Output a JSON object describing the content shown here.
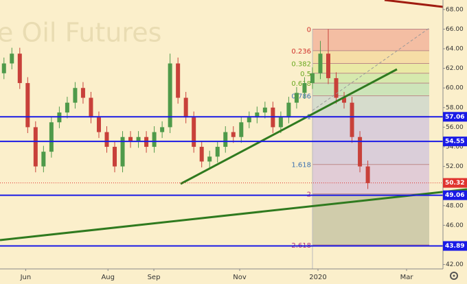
{
  "chart_data": {
    "type": "candlestick",
    "title": "e Oil Futures",
    "x": [
      -5,
      -3,
      -1,
      1,
      3,
      5,
      7,
      9,
      11,
      13,
      15,
      17,
      19,
      21,
      23,
      25,
      27,
      29,
      31,
      33,
      35,
      37,
      39,
      41,
      43,
      45,
      47,
      49,
      51,
      53,
      55,
      57,
      59,
      61,
      63,
      65,
      67,
      69,
      71,
      73,
      75,
      77,
      79,
      81,
      83,
      85,
      87
    ],
    "open": [
      61.5,
      62.5,
      63.5,
      60.5,
      56,
      52,
      53.5,
      56.5,
      57.5,
      58.5,
      60,
      59,
      57,
      55.5,
      54,
      52,
      55,
      54.5,
      55,
      54,
      55.5,
      56,
      62.5,
      59,
      57,
      54,
      52.5,
      53,
      54,
      55.5,
      55,
      56.5,
      57,
      57.5,
      58,
      56,
      57,
      58.5,
      59.5,
      60.5,
      61.5,
      63.5,
      61,
      59,
      58.5,
      55,
      52
    ],
    "high": [
      63.1,
      64.1,
      64.1,
      61.1,
      56.6,
      54.1,
      57.1,
      58.1,
      59.1,
      60.6,
      60.6,
      59.6,
      57.6,
      56.1,
      54.6,
      55.6,
      55.6,
      55.6,
      55.6,
      56.1,
      56.6,
      63.5,
      63.1,
      59.6,
      57.6,
      54.6,
      53.6,
      54.6,
      56.1,
      56.1,
      57.1,
      57.6,
      58.1,
      58.6,
      58.6,
      57.6,
      59.1,
      60.1,
      61.1,
      62.1,
      64.8,
      66.0,
      61.6,
      59.6,
      59.1,
      55.6,
      52.6
    ],
    "low": [
      60.9,
      61.9,
      59.9,
      55.4,
      51.4,
      51.4,
      52.9,
      55.9,
      56.9,
      57.9,
      58.4,
      56.4,
      54.9,
      53.4,
      51.4,
      51.4,
      53.9,
      53.9,
      53.4,
      53.4,
      54.9,
      55.4,
      58.4,
      56.4,
      53.4,
      51.9,
      51.9,
      52.4,
      53.4,
      54.4,
      54.4,
      55.9,
      56.4,
      56.9,
      55.4,
      55.4,
      56.4,
      57.9,
      58.9,
      59.9,
      60.9,
      60.4,
      58.4,
      57.9,
      54.4,
      51.4,
      49.7
    ],
    "close": [
      62.5,
      63.5,
      60.5,
      56,
      52,
      53.5,
      56.5,
      57.5,
      58.5,
      60,
      59,
      57,
      55.5,
      54,
      52,
      55,
      54.5,
      55,
      54,
      55.5,
      56,
      62.5,
      59,
      57,
      54,
      52.5,
      53,
      54,
      55.5,
      55,
      56.5,
      57,
      57.5,
      58,
      56,
      57,
      58.5,
      59.5,
      60.5,
      61.5,
      63.5,
      61,
      59,
      58.5,
      55,
      52,
      50.3
    ],
    "up_color": "#4f9a4a",
    "down_color": "#c8413a",
    "xlim": [
      -6,
      106
    ],
    "xticks": [
      {
        "value": 0.5,
        "label": "Jun"
      },
      {
        "value": 21.3,
        "label": "Aug"
      },
      {
        "value": 32.9,
        "label": "Sep"
      },
      {
        "value": 54.6,
        "label": "Nov"
      },
      {
        "value": 74.4,
        "label": "2020"
      },
      {
        "value": 96.8,
        "label": "Mar"
      }
    ],
    "ylim": [
      41.55,
      68.48
    ],
    "yticks": [
      {
        "value": 42,
        "label": "42.00"
      },
      {
        "value": 44,
        "label": "44.00"
      },
      {
        "value": 46,
        "label": "46.00"
      },
      {
        "value": 48,
        "label": "48.00"
      },
      {
        "value": 50,
        "label": "50.00"
      },
      {
        "value": 52,
        "label": "52.00"
      },
      {
        "value": 54,
        "label": "54.00"
      },
      {
        "value": 56,
        "label": "56.00"
      },
      {
        "value": 58,
        "label": "58.00"
      },
      {
        "value": 60,
        "label": "60.00"
      },
      {
        "value": 62,
        "label": "62.00"
      },
      {
        "value": 64,
        "label": "64.00"
      },
      {
        "value": 66,
        "label": "66.00"
      },
      {
        "value": 68,
        "label": "68.00"
      }
    ],
    "levels": [
      57.06,
      54.55,
      49.06,
      43.89
    ],
    "level_color": "#1a1ae6",
    "last_price": 50.32,
    "last_color": "#e0332e",
    "fib_levels": [
      {
        "ratio": 0,
        "price": 66.0,
        "color": "#f2b59c"
      },
      {
        "ratio": 0.236,
        "price": 63.8,
        "color": "#f5d9a0"
      },
      {
        "ratio": 0.382,
        "price": 62.5,
        "color": "#e6e79f"
      },
      {
        "ratio": 0.5,
        "price": 61.5,
        "color": "#cfe7a8"
      },
      {
        "ratio": 0.618,
        "price": 60.5,
        "color": "#c4e2b6"
      },
      {
        "ratio": 0.786,
        "price": 59.2,
        "color": "#cfd8cc"
      },
      {
        "ratio": 1,
        "price": 57.1,
        "color": "#d3c8dc"
      },
      {
        "ratio": 1.618,
        "price": 52.2,
        "color": "#dcc5d8"
      },
      {
        "ratio": 2,
        "price": 49.2,
        "color": "#c8c6a6"
      },
      {
        "ratio": 2.618,
        "price": 44.0,
        "color": "#c8c6a6"
      }
    ]
  }
}
